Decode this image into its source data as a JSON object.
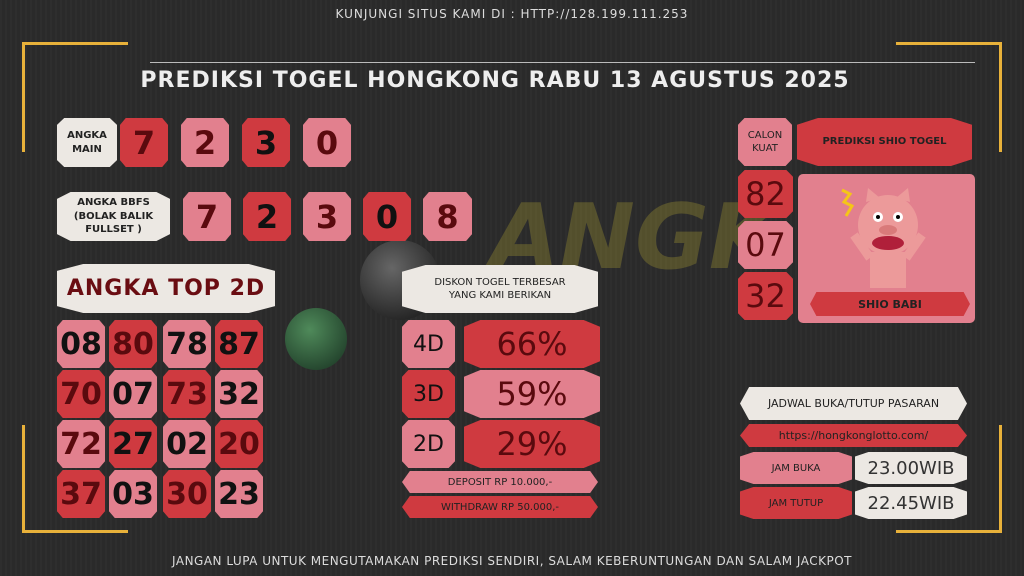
{
  "header": {
    "visit": "KUNJUNGI SITUS KAMI DI : HTTP://128.199.111.253",
    "title": "PREDIKSI TOGEL HONGKONG RABU 13 AGUSTUS 2025"
  },
  "angka_main": {
    "label": "ANGKA MAIN",
    "digits": [
      "7",
      "2",
      "3",
      "0"
    ]
  },
  "bbfs": {
    "label": "ANGKA BBFS (BOLAK BALIK FULLSET )",
    "digits": [
      "7",
      "2",
      "3",
      "0",
      "8"
    ]
  },
  "top2d": {
    "label": "ANGKA TOP 2D",
    "numbers": [
      "08",
      "80",
      "78",
      "87",
      "70",
      "07",
      "73",
      "32",
      "72",
      "27",
      "02",
      "20",
      "37",
      "03",
      "30",
      "23"
    ]
  },
  "diskon": {
    "label": "DISKON TOGEL TERBESAR YANG KAMI BERIKAN",
    "rows": [
      {
        "type": "4D",
        "pct": "66%"
      },
      {
        "type": "3D",
        "pct": "59%"
      },
      {
        "type": "2D",
        "pct": "29%"
      }
    ],
    "deposit": "DEPOSIT RP 10.000,-",
    "withdraw": "WITHDRAW RP 50.000,-"
  },
  "calon": {
    "label": "CALON KUAT",
    "numbers": [
      "82",
      "07",
      "32"
    ]
  },
  "shio": {
    "title": "PREDIKSI SHIO TOGEL",
    "name": "SHIO BABI"
  },
  "jadwal": {
    "title": "JADWAL BUKA/TUTUP PASARAN",
    "url": "https://hongkonglotto.com/",
    "buka_label": "JAM BUKA",
    "buka": "23.00WIB",
    "tutup_label": "JAM TUTUP",
    "tutup": "22.45WIB"
  },
  "footer": "JANGAN LUPA UNTUK MENGUTAMAKAN PREDIKSI SENDIRI, SALAM KEBERUNTUNGAN DAN SALAM JACKPOT",
  "colors": {
    "red": "#cf3a40",
    "pink": "#e2808e",
    "cream": "#ece8e3",
    "gold": "#e8b13a"
  }
}
